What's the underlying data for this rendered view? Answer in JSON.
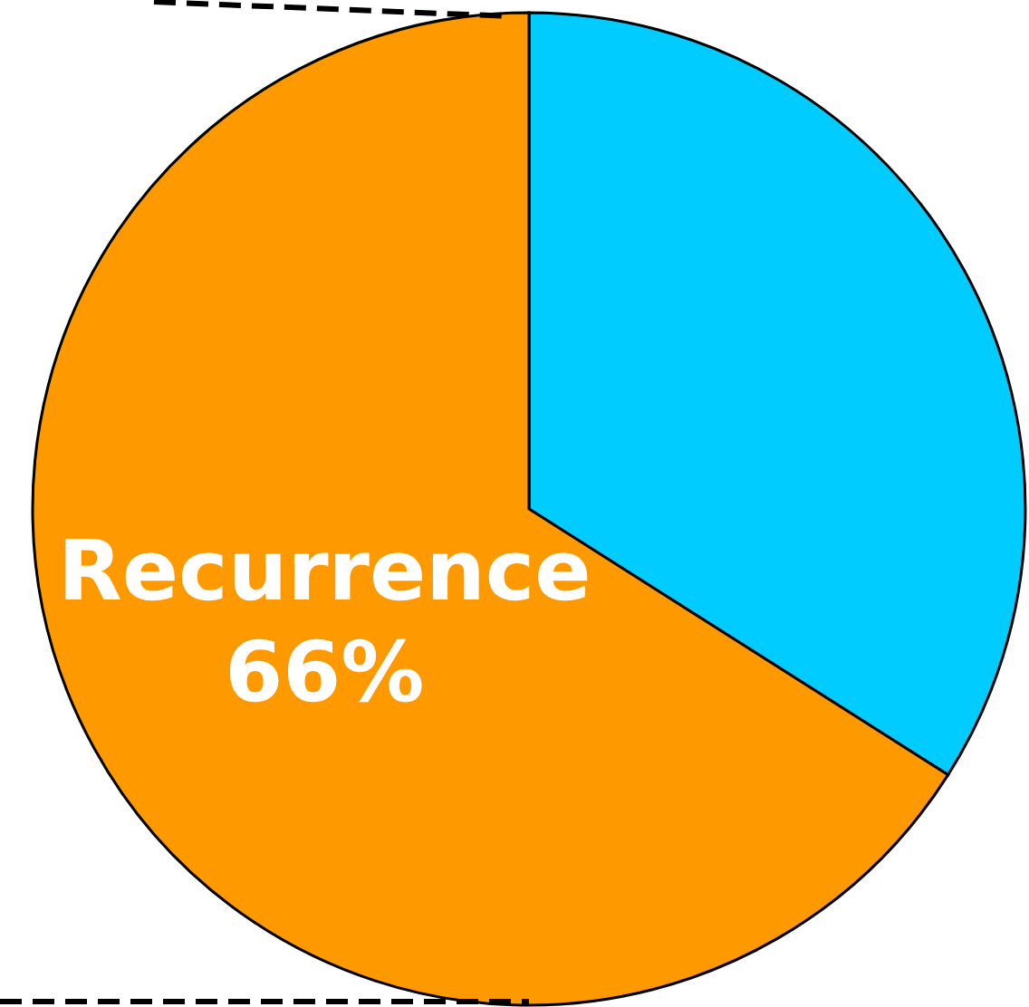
{
  "chart_data": {
    "type": "pie",
    "categories": [
      null,
      "Recurrence"
    ],
    "values": [
      34,
      66
    ],
    "colors": [
      "#00ccff",
      "#ff9900"
    ],
    "value_labels": [
      null,
      "66%"
    ]
  }
}
